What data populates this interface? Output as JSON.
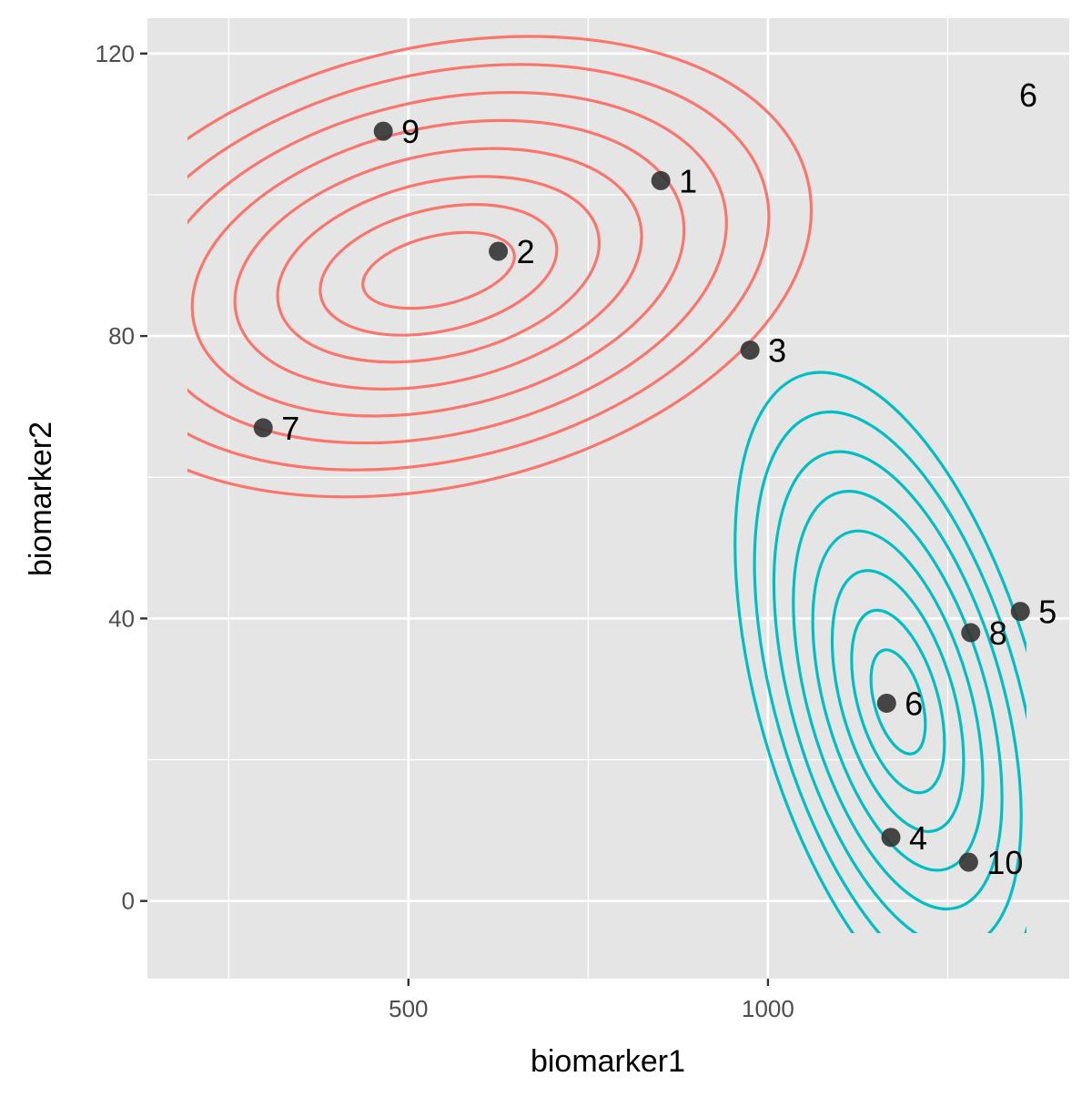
{
  "chart_data": {
    "type": "scatter",
    "xlabel": "biomarker1",
    "ylabel": "biomarker2",
    "xlim": [
      137,
      1419
    ],
    "ylim": [
      -11,
      125
    ],
    "x_ticks": [
      500,
      1000
    ],
    "x_tick_labels": [
      "500",
      "1000"
    ],
    "y_ticks": [
      0,
      40,
      80,
      120
    ],
    "y_tick_labels": [
      "0",
      "40",
      "80",
      "120"
    ],
    "x_minor": [
      250,
      750,
      1250
    ],
    "y_minor": [
      20,
      60,
      100
    ],
    "grid": true,
    "corner_label": "6",
    "points": [
      {
        "label": "1",
        "x": 851,
        "y": 102
      },
      {
        "label": "2",
        "x": 625,
        "y": 92
      },
      {
        "label": "3",
        "x": 975,
        "y": 78
      },
      {
        "label": "4",
        "x": 1171,
        "y": 9
      },
      {
        "label": "5",
        "x": 1351,
        "y": 41
      },
      {
        "label": "6",
        "x": 1165,
        "y": 28
      },
      {
        "label": "7",
        "x": 298,
        "y": 67
      },
      {
        "label": "8",
        "x": 1282,
        "y": 38
      },
      {
        "label": "9",
        "x": 465,
        "y": 109
      },
      {
        "label": "10",
        "x": 1279,
        "y": 5.5
      }
    ],
    "series": [
      {
        "color": "#F8766D"
      },
      {
        "color": "#00BFC4"
      }
    ]
  }
}
